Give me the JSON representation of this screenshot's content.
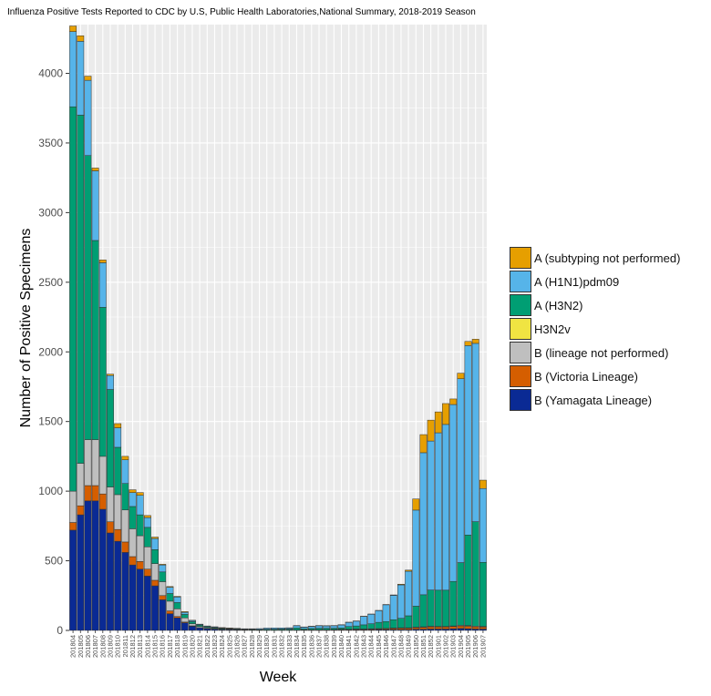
{
  "chart_data": {
    "type": "bar",
    "stacked": true,
    "title": "Influenza Positive Tests Reported to CDC by U.S, Public Health Laboratories,National Summary, 2018-2019 Season",
    "xlabel": "Week",
    "ylabel": "Number of Positive Specimens",
    "ylim": [
      0,
      4350
    ],
    "yticks": [
      0,
      500,
      1000,
      1500,
      2000,
      2500,
      3000,
      3500,
      4000
    ],
    "grid": true,
    "legend_position": "right",
    "categories": [
      "201804",
      "201805",
      "201806",
      "201807",
      "201808",
      "201809",
      "201810",
      "201811",
      "201812",
      "201813",
      "201814",
      "201815",
      "201816",
      "201817",
      "201818",
      "201819",
      "201820",
      "201821",
      "201822",
      "201823",
      "201824",
      "201825",
      "201826",
      "201827",
      "201828",
      "201829",
      "201830",
      "201831",
      "201832",
      "201833",
      "201834",
      "201835",
      "201836",
      "201837",
      "201838",
      "201839",
      "201840",
      "201841",
      "201842",
      "201843",
      "201844",
      "201845",
      "201846",
      "201847",
      "201848",
      "201849",
      "201850",
      "201851",
      "201852",
      "201901",
      "201902",
      "201903",
      "201904",
      "201905",
      "201906",
      "201907"
    ],
    "series": [
      {
        "name": "B (Yamagata Lineage)",
        "color": "#0a2a94",
        "values": [
          720,
          830,
          930,
          930,
          870,
          700,
          640,
          560,
          470,
          440,
          390,
          320,
          220,
          120,
          90,
          55,
          30,
          18,
          12,
          9,
          6,
          5,
          4,
          3,
          3,
          2,
          2,
          2,
          2,
          2,
          2,
          2,
          2,
          2,
          2,
          3,
          3,
          3,
          4,
          4,
          4,
          5,
          5,
          6,
          6,
          6,
          8,
          8,
          10,
          10,
          10,
          12,
          14,
          12,
          10,
          10
        ]
      },
      {
        "name": "B (Victoria Lineage)",
        "color": "#d55e00",
        "values": [
          55,
          65,
          110,
          110,
          110,
          80,
          85,
          75,
          60,
          55,
          50,
          40,
          30,
          20,
          10,
          5,
          3,
          2,
          1,
          1,
          1,
          1,
          0,
          0,
          0,
          0,
          0,
          0,
          0,
          0,
          0,
          1,
          1,
          1,
          1,
          2,
          3,
          3,
          4,
          4,
          5,
          5,
          6,
          8,
          10,
          10,
          12,
          14,
          16,
          15,
          15,
          16,
          18,
          18,
          16,
          14
        ]
      },
      {
        "name": "B (lineage not performed)",
        "color": "#bfbfbf",
        "values": [
          225,
          305,
          330,
          330,
          270,
          250,
          250,
          230,
          200,
          185,
          160,
          120,
          100,
          70,
          55,
          30,
          15,
          8,
          6,
          4,
          3,
          2,
          2,
          2,
          1,
          1,
          1,
          1,
          1,
          1,
          1,
          1,
          1,
          1,
          1,
          1,
          2,
          2,
          2,
          2,
          3,
          3,
          3,
          3,
          3,
          3,
          4,
          4,
          4,
          4,
          4,
          4,
          5,
          5,
          5,
          5
        ]
      },
      {
        "name": "H3N2v",
        "color": "#f0e442",
        "values": [
          0,
          0,
          0,
          0,
          0,
          0,
          0,
          0,
          0,
          0,
          0,
          0,
          0,
          0,
          0,
          0,
          0,
          0,
          0,
          0,
          0,
          0,
          0,
          0,
          0,
          0,
          0,
          0,
          0,
          0,
          0,
          0,
          0,
          0,
          0,
          0,
          0,
          0,
          0,
          0,
          0,
          0,
          0,
          0,
          0,
          0,
          0,
          0,
          0,
          0,
          0,
          0,
          0,
          0,
          0,
          0
        ]
      },
      {
        "name": "A (H3N2)",
        "color": "#009e73",
        "values": [
          2760,
          2500,
          2040,
          1430,
          1070,
          700,
          340,
          190,
          160,
          150,
          140,
          100,
          70,
          55,
          45,
          25,
          15,
          10,
          7,
          6,
          5,
          4,
          4,
          3,
          4,
          4,
          6,
          6,
          7,
          7,
          15,
          8,
          10,
          12,
          12,
          10,
          10,
          20,
          22,
          30,
          36,
          45,
          50,
          60,
          68,
          86,
          150,
          230,
          260,
          260,
          260,
          320,
          450,
          650,
          750,
          460
        ]
      },
      {
        "name": "A (H1N1)pdm09",
        "color": "#56b4e9",
        "values": [
          540,
          530,
          540,
          500,
          320,
          100,
          140,
          170,
          100,
          140,
          70,
          80,
          50,
          45,
          40,
          15,
          8,
          5,
          5,
          5,
          4,
          4,
          4,
          4,
          4,
          6,
          8,
          9,
          8,
          8,
          16,
          12,
          15,
          18,
          17,
          18,
          22,
          30,
          35,
          60,
          68,
          84,
          120,
          175,
          240,
          320,
          690,
          1020,
          1070,
          1130,
          1190,
          1270,
          1320,
          1360,
          1280,
          530
        ]
      },
      {
        "name": "A (subtyping not performed)",
        "color": "#e69f00",
        "values": [
          40,
          40,
          30,
          20,
          20,
          10,
          30,
          25,
          20,
          20,
          15,
          10,
          5,
          5,
          5,
          5,
          2,
          2,
          1,
          1,
          1,
          1,
          1,
          0,
          0,
          0,
          0,
          0,
          0,
          1,
          1,
          1,
          1,
          1,
          1,
          1,
          1,
          1,
          1,
          2,
          2,
          2,
          2,
          3,
          5,
          8,
          80,
          130,
          150,
          150,
          150,
          40,
          40,
          30,
          30,
          60
        ]
      }
    ],
    "legend_order": [
      "A (subtyping not performed)",
      "A (H1N1)pdm09",
      "A (H3N2)",
      "H3N2v",
      "B (lineage not performed)",
      "B (Victoria Lineage)",
      "B (Yamagata Lineage)"
    ]
  }
}
